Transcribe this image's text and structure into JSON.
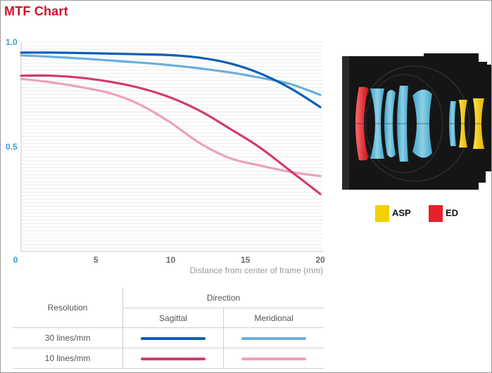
{
  "title": "MTF Chart",
  "chart_data": {
    "type": "line",
    "xlabel": "Distance from center of frame (mm)",
    "ylabel": "",
    "xlim": [
      0,
      20
    ],
    "ylim": [
      0,
      1.0
    ],
    "x_ticks": [
      "0",
      "5",
      "10",
      "15",
      "20"
    ],
    "y_ticks": [
      "0.5",
      "1.0"
    ],
    "grid": "horizontal",
    "x": [
      0,
      2,
      4,
      6,
      8,
      10,
      12,
      14,
      16,
      18,
      20
    ],
    "series": [
      {
        "key": "s30",
        "color": "#0a5fb4",
        "values": [
          0.95,
          0.95,
          0.948,
          0.945,
          0.942,
          0.938,
          0.925,
          0.898,
          0.85,
          0.78,
          0.69
        ]
      },
      {
        "key": "m30",
        "color": "#6aaede",
        "values": [
          0.937,
          0.93,
          0.922,
          0.912,
          0.902,
          0.89,
          0.874,
          0.855,
          0.83,
          0.8,
          0.748
        ]
      },
      {
        "key": "s10",
        "color": "#d23c6a",
        "values": [
          0.84,
          0.84,
          0.83,
          0.81,
          0.78,
          0.735,
          0.67,
          0.585,
          0.495,
          0.385,
          0.275
        ]
      },
      {
        "key": "m10",
        "color": "#eda1b5",
        "values": [
          0.825,
          0.808,
          0.785,
          0.755,
          0.7,
          0.615,
          0.515,
          0.445,
          0.41,
          0.38,
          0.36
        ]
      }
    ]
  },
  "legend_table": {
    "resolution_header": "Resolution",
    "direction_header": "Direction",
    "sagittal_header": "Sagittal",
    "meridional_header": "Meridional",
    "row1_label": "30 lines/mm",
    "row2_label": "10 lines/mm"
  },
  "lens_legend": {
    "asp_label": "ASP",
    "asp_color": "#f5d000",
    "ed_label": "ED",
    "ed_color": "#e8202a"
  }
}
